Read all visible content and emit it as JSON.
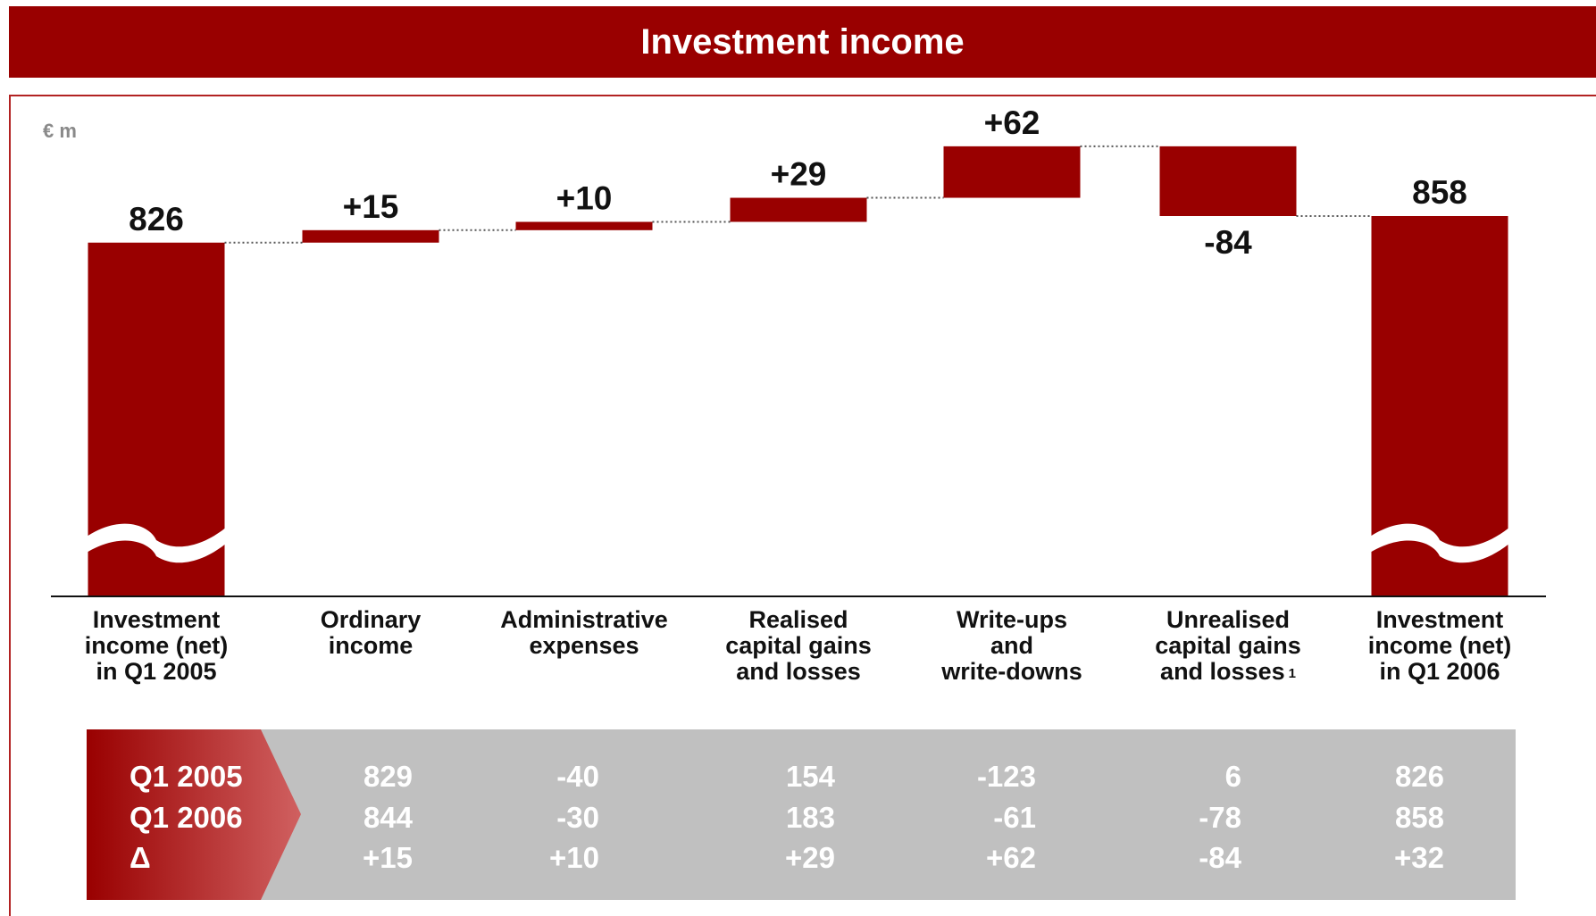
{
  "title": "Investment income",
  "unit": "€ m",
  "colors": {
    "bar": "#990000",
    "table_bg": "#c0c0c0",
    "arrow_dark": "#990000",
    "arrow_light": "#d06060"
  },
  "chart_data": {
    "type": "bar",
    "subtype": "waterfall",
    "categories": [
      "Investment income (net) in Q1 2005",
      "Ordinary income",
      "Administrative expenses",
      "Realised capital gains and losses",
      "Write-ups and write-downs",
      "Unrealised capital gains and losses",
      "Investment income (net) in Q1 2006"
    ],
    "category_lines": [
      [
        "Investment",
        "income (net)",
        "in Q1 2005"
      ],
      [
        "Ordinary",
        "income"
      ],
      [
        "Administrative",
        "expenses"
      ],
      [
        "Realised",
        "capital gains",
        "and losses"
      ],
      [
        "Write-ups",
        "and",
        "write-downs"
      ],
      [
        "Unrealised",
        "capital gains",
        "and losses"
      ],
      [
        "Investment",
        "income (net)",
        "in Q1 2006"
      ]
    ],
    "footnote_marks": [
      "",
      "",
      "",
      "",
      "",
      "1",
      ""
    ],
    "values": [
      826,
      15,
      10,
      29,
      62,
      -84,
      858
    ],
    "kinds": [
      "total",
      "delta",
      "delta",
      "delta",
      "delta",
      "delta",
      "total"
    ],
    "data_labels": [
      "826",
      "+15",
      "+10",
      "+29",
      "+62",
      "-84",
      "858"
    ],
    "axis_break": true
  },
  "table": {
    "row_labels": [
      "Q1 2005",
      "Q1 2006",
      "Δ"
    ],
    "rows": [
      [
        "829",
        "-40",
        "154",
        "-123",
        "6",
        "826"
      ],
      [
        "844",
        "-30",
        "183",
        "-61",
        "-78",
        "858"
      ],
      [
        "+15",
        "+10",
        "+29",
        "+62",
        "-84",
        "+32"
      ]
    ]
  }
}
